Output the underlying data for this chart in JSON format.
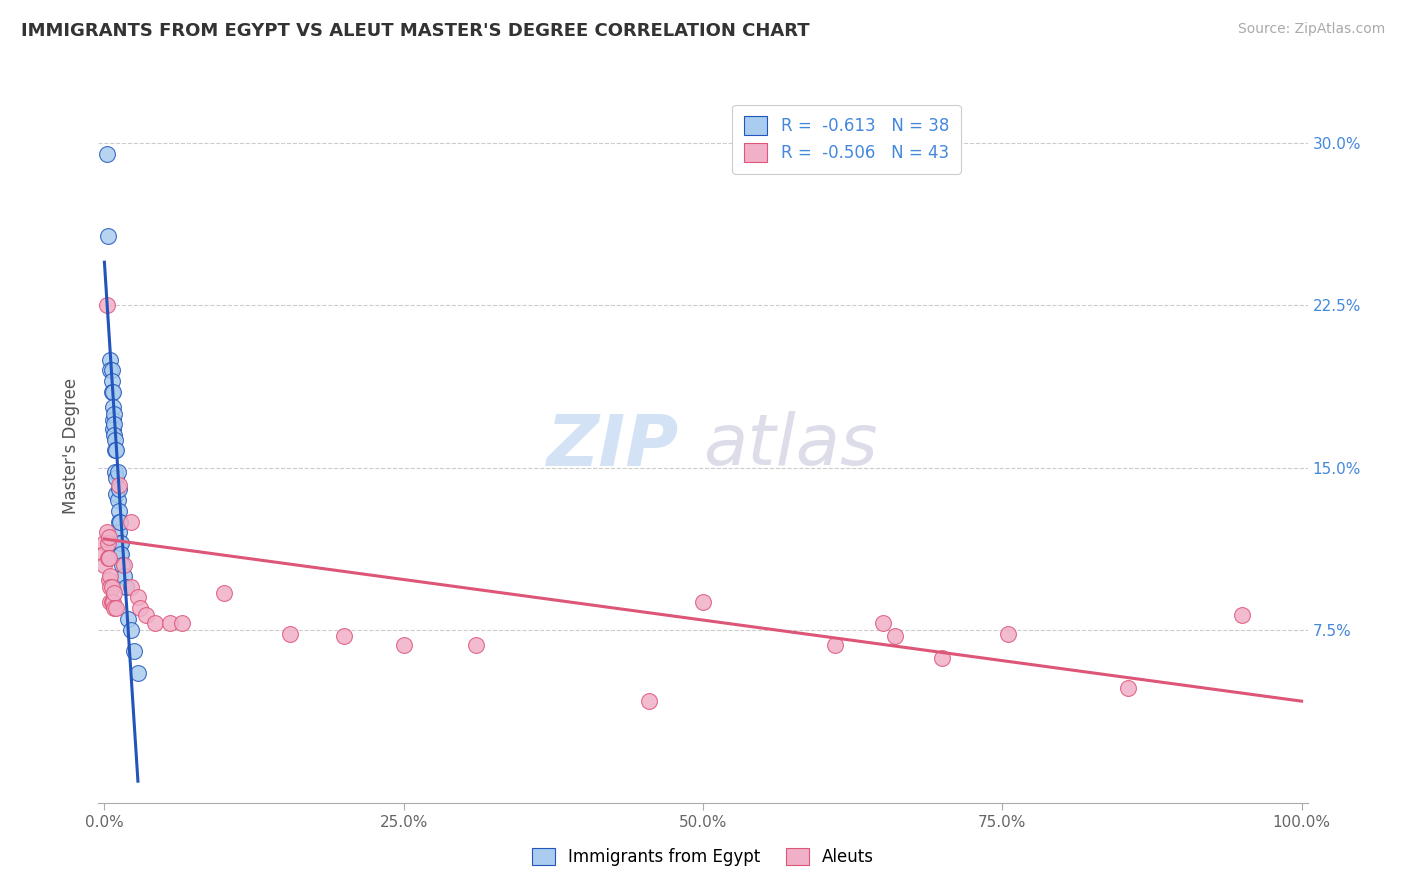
{
  "title": "IMMIGRANTS FROM EGYPT VS ALEUT MASTER'S DEGREE CORRELATION CHART",
  "source_text": "Source: ZipAtlas.com",
  "ylabel": "Master's Degree",
  "legend_label1": "Immigrants from Egypt",
  "legend_label2": "Aleuts",
  "r1": -0.613,
  "n1": 38,
  "r2": -0.506,
  "n2": 43,
  "xlim": [
    -0.005,
    1.005
  ],
  "ylim": [
    -0.005,
    0.325
  ],
  "xticks": [
    0.0,
    0.25,
    0.5,
    0.75,
    1.0
  ],
  "xtick_labels": [
    "0.0%",
    "25.0%",
    "50.0%",
    "75.0%",
    "100.0%"
  ],
  "ytick_labels": [
    "7.5%",
    "15.0%",
    "22.5%",
    "30.0%"
  ],
  "yticks": [
    0.075,
    0.15,
    0.225,
    0.3
  ],
  "color1": "#aaccee",
  "color2": "#f0b0c8",
  "line_color1": "#2255bb",
  "line_color2": "#dd5577",
  "background_color": "#ffffff",
  "watermark_zip": "ZIP",
  "watermark_atlas": "atlas",
  "scatter_blue": [
    [
      0.002,
      0.295
    ],
    [
      0.003,
      0.257
    ],
    [
      0.005,
      0.2
    ],
    [
      0.005,
      0.195
    ],
    [
      0.006,
      0.195
    ],
    [
      0.006,
      0.19
    ],
    [
      0.006,
      0.185
    ],
    [
      0.007,
      0.185
    ],
    [
      0.007,
      0.178
    ],
    [
      0.007,
      0.172
    ],
    [
      0.007,
      0.168
    ],
    [
      0.008,
      0.175
    ],
    [
      0.008,
      0.17
    ],
    [
      0.008,
      0.165
    ],
    [
      0.009,
      0.163
    ],
    [
      0.009,
      0.158
    ],
    [
      0.009,
      0.148
    ],
    [
      0.01,
      0.158
    ],
    [
      0.01,
      0.145
    ],
    [
      0.01,
      0.138
    ],
    [
      0.011,
      0.148
    ],
    [
      0.011,
      0.135
    ],
    [
      0.012,
      0.14
    ],
    [
      0.012,
      0.13
    ],
    [
      0.012,
      0.125
    ],
    [
      0.012,
      0.12
    ],
    [
      0.013,
      0.125
    ],
    [
      0.013,
      0.115
    ],
    [
      0.013,
      0.11
    ],
    [
      0.014,
      0.115
    ],
    [
      0.014,
      0.11
    ],
    [
      0.015,
      0.105
    ],
    [
      0.016,
      0.1
    ],
    [
      0.018,
      0.095
    ],
    [
      0.02,
      0.08
    ],
    [
      0.022,
      0.075
    ],
    [
      0.025,
      0.065
    ],
    [
      0.028,
      0.055
    ]
  ],
  "scatter_pink": [
    [
      0.0,
      0.115
    ],
    [
      0.0,
      0.11
    ],
    [
      0.0,
      0.105
    ],
    [
      0.002,
      0.225
    ],
    [
      0.002,
      0.12
    ],
    [
      0.003,
      0.115
    ],
    [
      0.003,
      0.108
    ],
    [
      0.004,
      0.118
    ],
    [
      0.004,
      0.108
    ],
    [
      0.004,
      0.098
    ],
    [
      0.005,
      0.1
    ],
    [
      0.005,
      0.095
    ],
    [
      0.005,
      0.088
    ],
    [
      0.006,
      0.095
    ],
    [
      0.006,
      0.088
    ],
    [
      0.007,
      0.088
    ],
    [
      0.008,
      0.092
    ],
    [
      0.008,
      0.085
    ],
    [
      0.01,
      0.085
    ],
    [
      0.012,
      0.142
    ],
    [
      0.016,
      0.105
    ],
    [
      0.022,
      0.125
    ],
    [
      0.022,
      0.095
    ],
    [
      0.028,
      0.09
    ],
    [
      0.03,
      0.085
    ],
    [
      0.035,
      0.082
    ],
    [
      0.042,
      0.078
    ],
    [
      0.055,
      0.078
    ],
    [
      0.065,
      0.078
    ],
    [
      0.1,
      0.092
    ],
    [
      0.155,
      0.073
    ],
    [
      0.2,
      0.072
    ],
    [
      0.25,
      0.068
    ],
    [
      0.31,
      0.068
    ],
    [
      0.455,
      0.042
    ],
    [
      0.5,
      0.088
    ],
    [
      0.61,
      0.068
    ],
    [
      0.65,
      0.078
    ],
    [
      0.66,
      0.072
    ],
    [
      0.7,
      0.062
    ],
    [
      0.755,
      0.073
    ],
    [
      0.855,
      0.048
    ],
    [
      0.95,
      0.082
    ]
  ],
  "blue_line_x": [
    0.0,
    0.028
  ],
  "blue_line_y": [
    0.245,
    0.005
  ],
  "pink_line_x": [
    0.0,
    1.0
  ],
  "pink_line_y": [
    0.117,
    0.042
  ]
}
